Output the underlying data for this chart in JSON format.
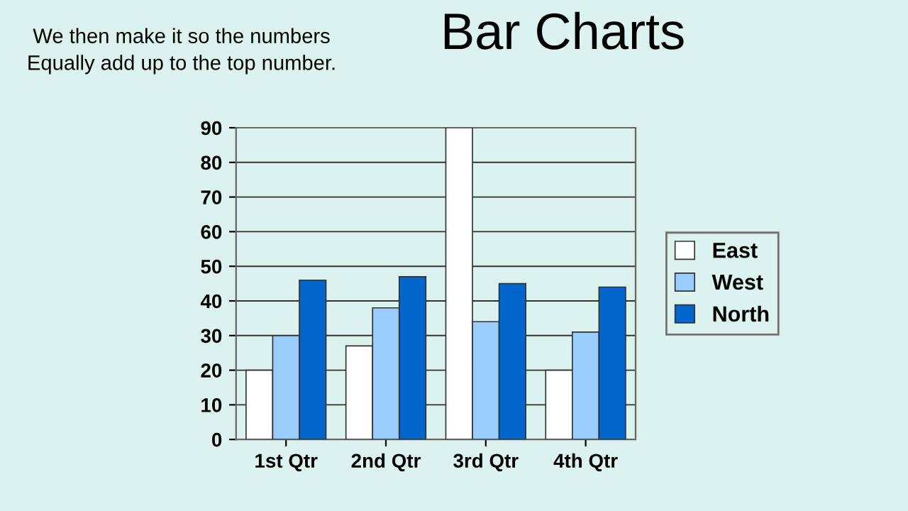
{
  "chart_data": {
    "type": "bar",
    "title": "Bar Charts",
    "annotations": [
      "We then make it so the numbers\nEqually add up to the top number."
    ],
    "categories": [
      "1st Qtr",
      "2nd Qtr",
      "3rd Qtr",
      "4th Qtr"
    ],
    "series": [
      {
        "name": "East",
        "color": "#ffffff",
        "values": [
          20,
          27,
          90,
          20
        ]
      },
      {
        "name": "West",
        "color": "#99ccff",
        "values": [
          30,
          38,
          34,
          31
        ]
      },
      {
        "name": "North",
        "color": "#0066cc",
        "values": [
          46,
          47,
          45,
          44
        ]
      }
    ],
    "ylim": [
      0,
      90
    ],
    "yticks": [
      0,
      10,
      20,
      30,
      40,
      50,
      60,
      70,
      80,
      90
    ],
    "grid": "y",
    "legend": "right"
  }
}
